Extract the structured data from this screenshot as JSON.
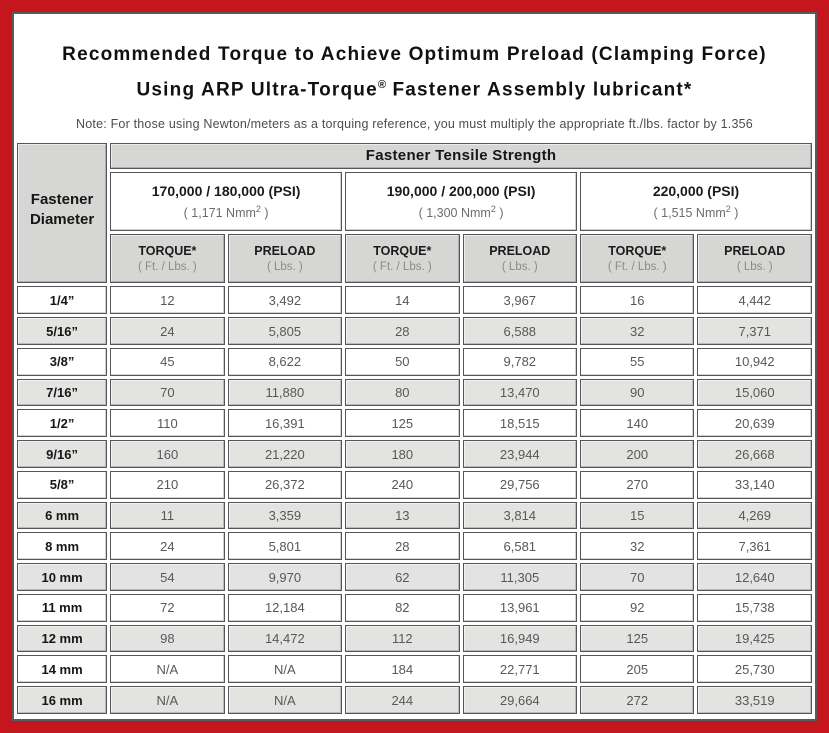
{
  "colors": {
    "frame_red": "#c4161c",
    "panel_border": "#595a5e",
    "header_gray": "#d6d6d4",
    "alt_row_gray": "#e3e3e1",
    "cell_border": "#55565a"
  },
  "header": {
    "title_line1": "Recommended Torque to Achieve Optimum Preload (Clamping Force)",
    "title_line2_pre": "Using ARP Ultra-Torque",
    "title_line2_sup": "®",
    "title_line2_post": " Fastener Assembly lubricant*",
    "note": "Note: For those using Newton/meters as a torquing reference, you must multiply the appropriate ft./lbs. factor by 1.356"
  },
  "table": {
    "tensile_header": "Fastener Tensile Strength",
    "diameter_header_line1": "Fastener",
    "diameter_header_line2": "Diameter",
    "groups": [
      {
        "psi": "170,000 / 180,000 (PSI)",
        "nmm_pre": "( 1,171 Nmm",
        "nmm_sup": "2",
        "nmm_post": " )"
      },
      {
        "psi": "190,000 / 200,000 (PSI)",
        "nmm_pre": "( 1,300 Nmm",
        "nmm_sup": "2",
        "nmm_post": " )"
      },
      {
        "psi": "220,000 (PSI)",
        "nmm_pre": "( 1,515 Nmm",
        "nmm_sup": "2",
        "nmm_post": " )"
      }
    ],
    "col_headers": {
      "torque_label": "TORQUE*",
      "torque_unit": "( Ft. / Lbs. )",
      "preload_label": "PRELOAD",
      "preload_unit": "( Lbs. )"
    },
    "rows": [
      {
        "diameter": "1/4”",
        "values": [
          "12",
          "3,492",
          "14",
          "3,967",
          "16",
          "4,442"
        ]
      },
      {
        "diameter": "5/16”",
        "values": [
          "24",
          "5,805",
          "28",
          "6,588",
          "32",
          "7,371"
        ]
      },
      {
        "diameter": "3/8”",
        "values": [
          "45",
          "8,622",
          "50",
          "9,782",
          "55",
          "10,942"
        ]
      },
      {
        "diameter": "7/16”",
        "values": [
          "70",
          "11,880",
          "80",
          "13,470",
          "90",
          "15,060"
        ]
      },
      {
        "diameter": "1/2”",
        "values": [
          "110",
          "16,391",
          "125",
          "18,515",
          "140",
          "20,639"
        ]
      },
      {
        "diameter": "9/16”",
        "values": [
          "160",
          "21,220",
          "180",
          "23,944",
          "200",
          "26,668"
        ]
      },
      {
        "diameter": "5/8”",
        "values": [
          "210",
          "26,372",
          "240",
          "29,756",
          "270",
          "33,140"
        ]
      },
      {
        "diameter": "6 mm",
        "values": [
          "11",
          "3,359",
          "13",
          "3,814",
          "15",
          "4,269"
        ]
      },
      {
        "diameter": "8 mm",
        "values": [
          "24",
          "5,801",
          "28",
          "6,581",
          "32",
          "7,361"
        ]
      },
      {
        "diameter": "10 mm",
        "values": [
          "54",
          "9,970",
          "62",
          "11,305",
          "70",
          "12,640"
        ]
      },
      {
        "diameter": "11 mm",
        "values": [
          "72",
          "12,184",
          "82",
          "13,961",
          "92",
          "15,738"
        ]
      },
      {
        "diameter": "12 mm",
        "values": [
          "98",
          "14,472",
          "112",
          "16,949",
          "125",
          "19,425"
        ]
      },
      {
        "diameter": "14 mm",
        "values": [
          "N/A",
          "N/A",
          "184",
          "22,771",
          "205",
          "25,730"
        ]
      },
      {
        "diameter": "16 mm",
        "values": [
          "N/A",
          "N/A",
          "244",
          "29,664",
          "272",
          "33,519"
        ]
      }
    ]
  }
}
